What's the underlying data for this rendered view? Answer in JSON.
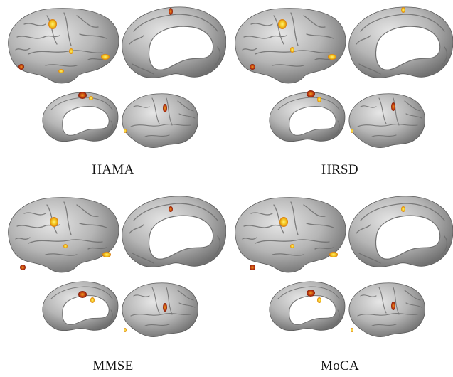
{
  "panels": [
    {
      "label": "HAMA"
    },
    {
      "label": "HRSD"
    },
    {
      "label": "MMSE"
    },
    {
      "label": "MoCA"
    }
  ],
  "colors": {
    "cortex": "#b8b8b8",
    "cortex_dark": "#7a7a7a",
    "activation_hot": "#f7d21a",
    "activation_mid": "#e08a12",
    "activation_deep": "#b8320e"
  }
}
